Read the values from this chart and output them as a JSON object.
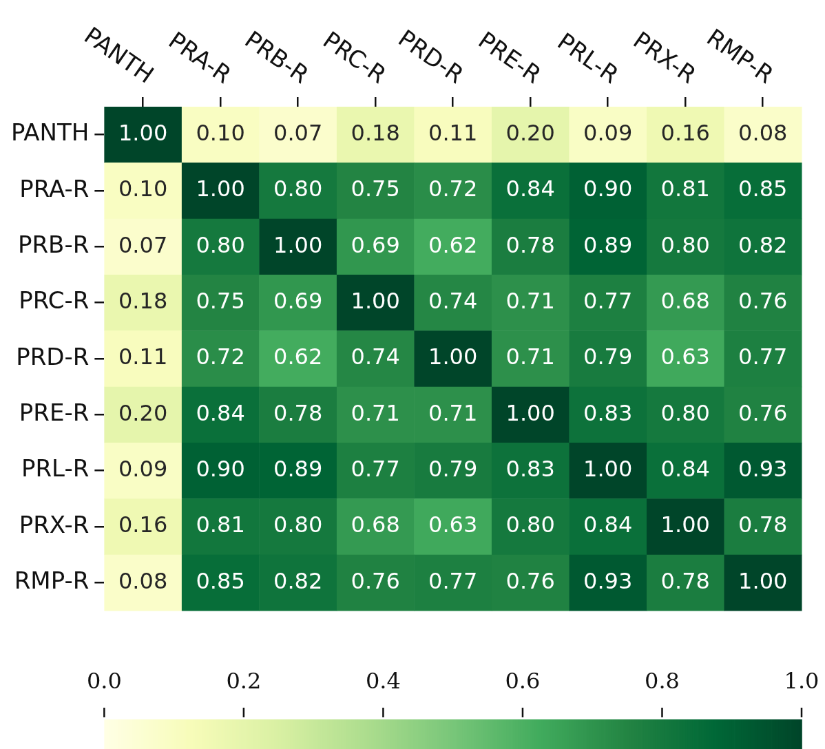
{
  "chart_data": {
    "type": "heatmap",
    "categories": [
      "PANTH",
      "PRA-R",
      "PRB-R",
      "PRC-R",
      "PRD-R",
      "PRE-R",
      "PRL-R",
      "PRX-R",
      "RMP-R"
    ],
    "y_categories": [
      "PANTH",
      "PRA-R",
      "PRB-R",
      "PRC-R",
      "PRD-R",
      "PRE-R",
      "PRL-R",
      "PRX-R",
      "RMP-R"
    ],
    "cells": [
      [
        1.0,
        0.1,
        0.07,
        0.18,
        0.11,
        0.2,
        0.09,
        0.16,
        0.08
      ],
      [
        0.1,
        1.0,
        0.8,
        0.75,
        0.72,
        0.84,
        0.9,
        0.81,
        0.85
      ],
      [
        0.07,
        0.8,
        1.0,
        0.69,
        0.62,
        0.78,
        0.89,
        0.8,
        0.82
      ],
      [
        0.18,
        0.75,
        0.69,
        1.0,
        0.74,
        0.71,
        0.77,
        0.68,
        0.76
      ],
      [
        0.11,
        0.72,
        0.62,
        0.74,
        1.0,
        0.71,
        0.79,
        0.63,
        0.77
      ],
      [
        0.2,
        0.84,
        0.78,
        0.71,
        0.71,
        1.0,
        0.83,
        0.8,
        0.76
      ],
      [
        0.09,
        0.9,
        0.89,
        0.77,
        0.79,
        0.83,
        1.0,
        0.84,
        0.93
      ],
      [
        0.16,
        0.81,
        0.8,
        0.68,
        0.63,
        0.8,
        0.84,
        1.0,
        0.78
      ],
      [
        0.08,
        0.85,
        0.82,
        0.76,
        0.77,
        0.76,
        0.93,
        0.78,
        1.0
      ]
    ],
    "cell_labels": [
      [
        "1.00",
        "0.10",
        "0.07",
        "0.18",
        "0.11",
        "0.20",
        "0.09",
        "0.16",
        "0.08"
      ],
      [
        "0.10",
        "1.00",
        "0.80",
        "0.75",
        "0.72",
        "0.84",
        "0.90",
        "0.81",
        "0.85"
      ],
      [
        "0.07",
        "0.80",
        "1.00",
        "0.69",
        "0.62",
        "0.78",
        "0.89",
        "0.80",
        "0.82"
      ],
      [
        "0.18",
        "0.75",
        "0.69",
        "1.00",
        "0.74",
        "0.71",
        "0.77",
        "0.68",
        "0.76"
      ],
      [
        "0.11",
        "0.72",
        "0.62",
        "0.74",
        "1.00",
        "0.71",
        "0.79",
        "0.63",
        "0.77"
      ],
      [
        "0.20",
        "0.84",
        "0.78",
        "0.71",
        "0.71",
        "1.00",
        "0.83",
        "0.80",
        "0.76"
      ],
      [
        "0.09",
        "0.90",
        "0.89",
        "0.77",
        "0.79",
        "0.83",
        "1.00",
        "0.84",
        "0.93"
      ],
      [
        "0.16",
        "0.81",
        "0.80",
        "0.68",
        "0.63",
        "0.80",
        "0.84",
        "1.00",
        "0.78"
      ],
      [
        "0.08",
        "0.85",
        "0.82",
        "0.76",
        "0.77",
        "0.76",
        "0.93",
        "0.78",
        "1.00"
      ]
    ],
    "clim": [
      0,
      1
    ],
    "cticks": [
      {
        "value": 0,
        "label": "0.0"
      },
      0.2,
      0.4,
      0.6,
      0.8,
      {
        "value": 1,
        "label": "1.0"
      }
    ]
  }
}
